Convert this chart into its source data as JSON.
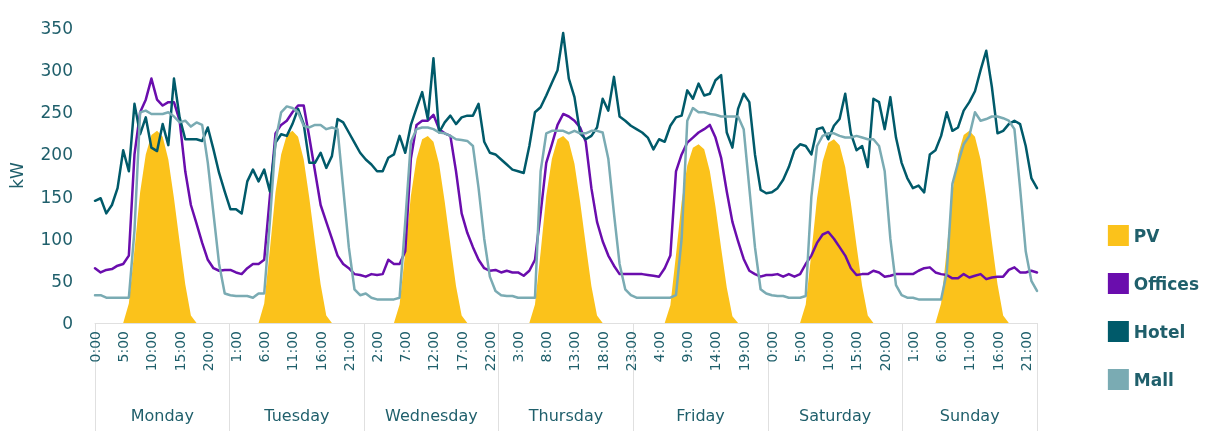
{
  "chart_data": {
    "type": "line",
    "ylabel": "kW",
    "categories": [
      "0:00",
      null,
      null,
      null,
      null,
      "5:00",
      null,
      null,
      null,
      null,
      "10:00",
      null,
      null,
      null,
      null,
      "15:00",
      null,
      null,
      null,
      null,
      "20:00",
      null,
      null,
      null,
      null,
      "1:00",
      null,
      null,
      null,
      null,
      "6:00",
      null,
      null,
      null,
      null,
      "11:00",
      null,
      null,
      null,
      null,
      "16:00",
      null,
      null,
      null,
      null,
      "21:00",
      null,
      null,
      null,
      null,
      "2:00",
      null,
      null,
      null,
      null,
      "7:00",
      null,
      null,
      null,
      null,
      "12:00",
      null,
      null,
      null,
      null,
      "17:00",
      null,
      null,
      null,
      null,
      "22:00",
      null,
      null,
      null,
      null,
      "3:00",
      null,
      null,
      null,
      null,
      "8:00",
      null,
      null,
      null,
      null,
      "13:00",
      null,
      null,
      null,
      null,
      "18:00",
      null,
      null,
      null,
      null,
      "23:00",
      null,
      null,
      null,
      null,
      "4:00",
      null,
      null,
      null,
      null,
      "9:00",
      null,
      null,
      null,
      null,
      "14:00",
      null,
      null,
      null,
      null,
      "19:00",
      null,
      null,
      null,
      null,
      "0:00",
      null,
      null,
      null,
      null,
      "5:00",
      null,
      null,
      null,
      null,
      "10:00",
      null,
      null,
      null,
      null,
      "15:00",
      null,
      null,
      null,
      null,
      "20:00",
      null,
      null,
      null,
      null,
      "1:00",
      null,
      null,
      null,
      null,
      "6:00",
      null,
      null,
      null,
      null,
      "11:00",
      null,
      null,
      null,
      null,
      "16:00",
      null,
      null,
      null,
      null,
      "21:00",
      null,
      null
    ],
    "annotations": [
      "Monday",
      "Tuesday",
      "Wednesday",
      "Thursday",
      "Friday",
      "Saturday",
      "Sunday"
    ],
    "series": [
      {
        "name": "PV",
        "type": "area",
        "color": "#fbc21b",
        "values": [
          0,
          0,
          0,
          0,
          0,
          0,
          23,
          87,
          155,
          200,
          223,
          228,
          221,
          194,
          148,
          96,
          46,
          9,
          0,
          0,
          0,
          0,
          0,
          0,
          0,
          0,
          0,
          0,
          0,
          0,
          23,
          87,
          155,
          200,
          223,
          228,
          221,
          194,
          148,
          96,
          46,
          9,
          0,
          0,
          0,
          0,
          0,
          0,
          0,
          0,
          0,
          0,
          0,
          0,
          22,
          84,
          151,
          195,
          218,
          222,
          215,
          189,
          144,
          93,
          44,
          9,
          0,
          0,
          0,
          0,
          0,
          0,
          0,
          0,
          0,
          0,
          0,
          0,
          22,
          84,
          151,
          195,
          218,
          222,
          215,
          189,
          144,
          93,
          44,
          9,
          0,
          0,
          0,
          0,
          0,
          0,
          0,
          0,
          0,
          0,
          0,
          0,
          21,
          81,
          144,
          187,
          208,
          212,
          206,
          180,
          138,
          89,
          42,
          8,
          0,
          0,
          0,
          0,
          0,
          0,
          0,
          0,
          0,
          0,
          0,
          0,
          22,
          83,
          148,
          192,
          214,
          218,
          211,
          185,
          142,
          92,
          44,
          9,
          0,
          0,
          0,
          0,
          0,
          0,
          0,
          0,
          0,
          0,
          0,
          0,
          23,
          87,
          155,
          200,
          223,
          228,
          221,
          194,
          148,
          96,
          46,
          9,
          0,
          0,
          0,
          0,
          0,
          0
        ]
      },
      {
        "name": "Offices",
        "color": "#6a0dad",
        "values": [
          65,
          60,
          63,
          64,
          68,
          70,
          80,
          200,
          250,
          265,
          290,
          265,
          258,
          262,
          262,
          240,
          180,
          140,
          118,
          95,
          75,
          65,
          62,
          63,
          63,
          60,
          58,
          65,
          70,
          70,
          75,
          150,
          225,
          235,
          240,
          250,
          258,
          258,
          220,
          180,
          140,
          120,
          100,
          80,
          70,
          65,
          58,
          57,
          55,
          58,
          57,
          58,
          75,
          70,
          70,
          85,
          195,
          235,
          240,
          240,
          247,
          230,
          225,
          222,
          180,
          130,
          107,
          90,
          75,
          65,
          62,
          63,
          60,
          62,
          60,
          60,
          56,
          62,
          75,
          130,
          190,
          212,
          235,
          248,
          245,
          240,
          232,
          215,
          160,
          120,
          97,
          80,
          68,
          58,
          58,
          58,
          58,
          58,
          57,
          56,
          55,
          65,
          80,
          180,
          200,
          214,
          220,
          226,
          230,
          235,
          220,
          196,
          156,
          120,
          97,
          76,
          62,
          58,
          55,
          57,
          57,
          58,
          55,
          58,
          55,
          58,
          70,
          80,
          95,
          105,
          108,
          100,
          90,
          80,
          65,
          57,
          58,
          58,
          62,
          60,
          55,
          56,
          58,
          58,
          58,
          58,
          62,
          65,
          66,
          60,
          58,
          57,
          53,
          53,
          58,
          54,
          56,
          58,
          52,
          54,
          55,
          55,
          63,
          66,
          60,
          60,
          62,
          60
        ]
      },
      {
        "name": "Hotel",
        "color": "#005a6a",
        "values": [
          145,
          148,
          130,
          140,
          160,
          205,
          180,
          260,
          224,
          244,
          208,
          204,
          236,
          211,
          290,
          244,
          218,
          218,
          218,
          216,
          232,
          206,
          178,
          156,
          135,
          135,
          130,
          168,
          182,
          168,
          182,
          156,
          214,
          224,
          222,
          236,
          254,
          236,
          190,
          190,
          202,
          184,
          198,
          242,
          238,
          226,
          214,
          202,
          194,
          188,
          180,
          180,
          196,
          200,
          222,
          202,
          235,
          255,
          274,
          242,
          314,
          226,
          238,
          246,
          236,
          244,
          246,
          246,
          260,
          215,
          202,
          200,
          194,
          188,
          182,
          180,
          178,
          210,
          250,
          256,
          270,
          285,
          300,
          344,
          290,
          268,
          225,
          218,
          222,
          232,
          266,
          252,
          292,
          245,
          240,
          234,
          230,
          226,
          220,
          206,
          218,
          215,
          234,
          244,
          246,
          276,
          266,
          284,
          270,
          272,
          288,
          294,
          226,
          208,
          254,
          272,
          262,
          200,
          158,
          154,
          155,
          160,
          170,
          185,
          205,
          212,
          210,
          200,
          230,
          232,
          218,
          234,
          242,
          272,
          225,
          205,
          210,
          185,
          266,
          262,
          230,
          268,
          220,
          190,
          172,
          160,
          163,
          155,
          200,
          205,
          222,
          250,
          228,
          232,
          252,
          262,
          275,
          300,
          323,
          280,
          225,
          228,
          236,
          240,
          236,
          210,
          172,
          160
        ]
      },
      {
        "name": "Mall",
        "color": "#7aabb3",
        "values": [
          33,
          33,
          30,
          30,
          30,
          30,
          30,
          110,
          250,
          252,
          248,
          248,
          248,
          250,
          245,
          238,
          240,
          233,
          238,
          235,
          190,
          130,
          70,
          35,
          33,
          32,
          32,
          32,
          30,
          35,
          35,
          120,
          216,
          250,
          257,
          255,
          250,
          234,
          232,
          235,
          235,
          230,
          232,
          230,
          160,
          90,
          40,
          33,
          35,
          30,
          28,
          28,
          28,
          28,
          30,
          120,
          215,
          230,
          232,
          232,
          230,
          226,
          225,
          222,
          218,
          217,
          216,
          210,
          160,
          100,
          55,
          38,
          33,
          32,
          32,
          30,
          30,
          30,
          30,
          180,
          225,
          228,
          228,
          228,
          225,
          228,
          225,
          225,
          228,
          228,
          226,
          195,
          130,
          70,
          40,
          33,
          30,
          30,
          30,
          30,
          30,
          30,
          30,
          33,
          100,
          240,
          255,
          250,
          250,
          248,
          247,
          245,
          245,
          245,
          245,
          230,
          160,
          90,
          40,
          35,
          33,
          32,
          32,
          30,
          30,
          30,
          32,
          150,
          210,
          222,
          225,
          225,
          222,
          220,
          220,
          222,
          220,
          218,
          218,
          210,
          180,
          100,
          45,
          33,
          30,
          30,
          28,
          28,
          28,
          28,
          28,
          60,
          165,
          190,
          212,
          222,
          250,
          240,
          242,
          245,
          245,
          243,
          240,
          230,
          160,
          85,
          50,
          38
        ]
      }
    ],
    "ylim": [
      0,
      350
    ],
    "yticks": [
      0,
      50,
      100,
      150,
      200,
      250,
      300,
      350
    ],
    "grid": false,
    "legend": "right",
    "marker": "none",
    "line_style": "solid"
  }
}
